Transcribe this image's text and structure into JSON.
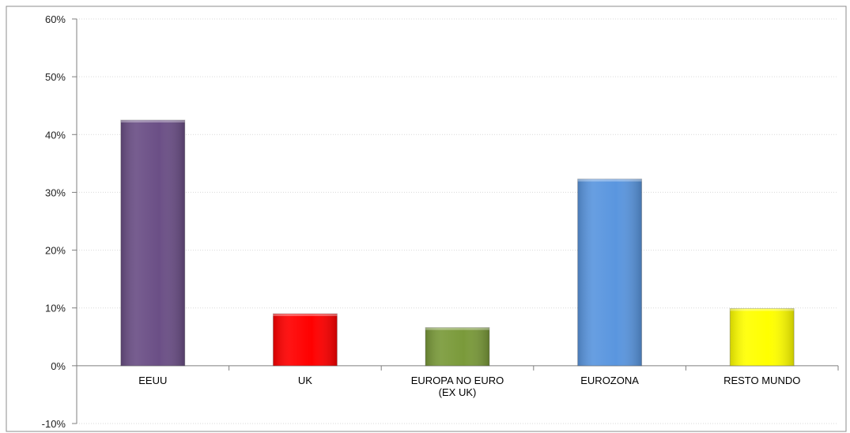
{
  "chart_data": {
    "type": "bar",
    "title": "",
    "xlabel": "",
    "ylabel": "",
    "categories": [
      [
        "EEUU"
      ],
      [
        "UK"
      ],
      [
        "EUROPA NO EURO",
        "(EX UK)"
      ],
      [
        "EUROZONA"
      ],
      [
        "RESTO MUNDO"
      ]
    ],
    "values": [
      42.5,
      9.0,
      6.6,
      32.3,
      9.9
    ],
    "colors": [
      "#6B4F86",
      "#FF0000",
      "#7A9A3A",
      "#5A96DF",
      "#FFFF00"
    ],
    "ylim": [
      -10,
      60
    ],
    "yticks": [
      -10,
      0,
      10,
      20,
      30,
      40,
      50,
      60
    ],
    "ytick_labels": [
      "-10%",
      "0%",
      "10%",
      "20%",
      "30%",
      "40%",
      "50%",
      "60%"
    ],
    "grid": true,
    "legend": "none"
  }
}
